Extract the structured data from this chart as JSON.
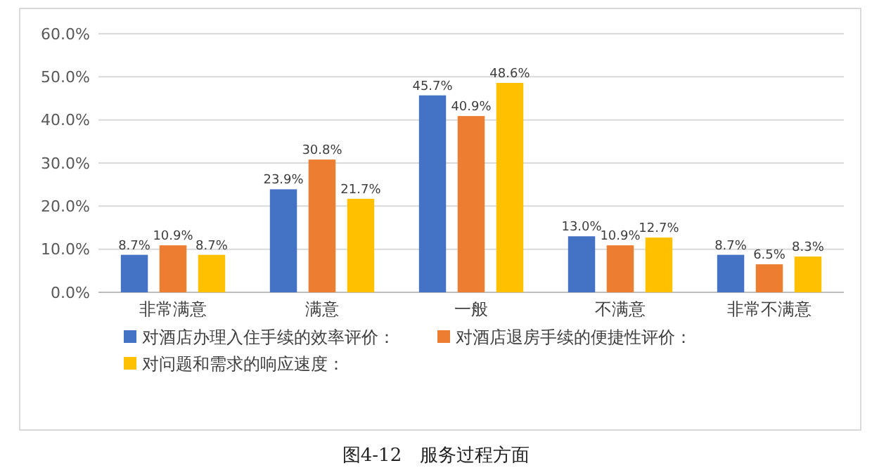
{
  "chart_data": {
    "type": "bar",
    "categories": [
      "非常满意",
      "满意",
      "一般",
      "不满意",
      "非常不满意"
    ],
    "series": [
      {
        "name": "对酒店办理入住手续的效率评价：",
        "color": "#4472c4",
        "values": [
          8.7,
          23.9,
          45.7,
          13.0,
          8.7
        ],
        "value_labels": [
          "8.7%",
          "23.9%",
          "45.7%",
          "13.0%",
          "8.7%"
        ]
      },
      {
        "name": "对酒店退房手续的便捷性评价：",
        "color": "#ed7d31",
        "values": [
          10.9,
          30.8,
          40.9,
          10.9,
          6.5
        ],
        "value_labels": [
          "10.9%",
          "30.8%",
          "40.9%",
          "10.9%",
          "6.5%"
        ]
      },
      {
        "name": "对问题和需求的响应速度：",
        "color": "#ffc000",
        "values": [
          8.7,
          21.7,
          48.6,
          12.7,
          8.3
        ],
        "value_labels": [
          "8.7%",
          "21.7%",
          "48.6%",
          "12.7%",
          "8.3%"
        ]
      }
    ],
    "ylim": [
      0,
      60
    ],
    "yticks": [
      {
        "value": 0,
        "label": "0.0%"
      },
      {
        "value": 10,
        "label": "10.0%"
      },
      {
        "value": 20,
        "label": "20.0%"
      },
      {
        "value": 30,
        "label": "30.0%"
      },
      {
        "value": 40,
        "label": "40.0%"
      },
      {
        "value": 50,
        "label": "50.0%"
      },
      {
        "value": 60,
        "label": "60.0%"
      }
    ],
    "grid": "y",
    "legend": "bottom",
    "annotations": [
      "图4-12　服务过程方面"
    ]
  }
}
